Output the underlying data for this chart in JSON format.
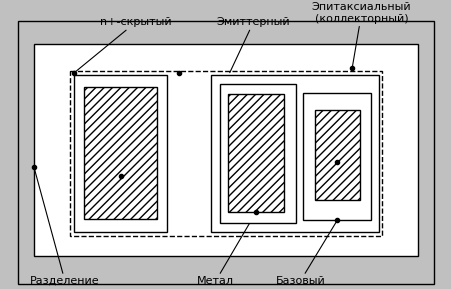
{
  "labels": {
    "epitaxial": "Эпитаксиальный\n(коллекторный)",
    "n_plus": "n+-скрытый",
    "emitter": "Эмиттерный",
    "razdelenie": "Разделение",
    "metal": "Метал",
    "bazovy": "Базовый"
  },
  "fig_w": 4.52,
  "fig_h": 2.89,
  "dpi": 100,
  "bg_color": "#c0c0c0",
  "white": "#ffffff",
  "black": "#000000",
  "hatch": "////",
  "lw": 1.0,
  "fs": 8.0
}
